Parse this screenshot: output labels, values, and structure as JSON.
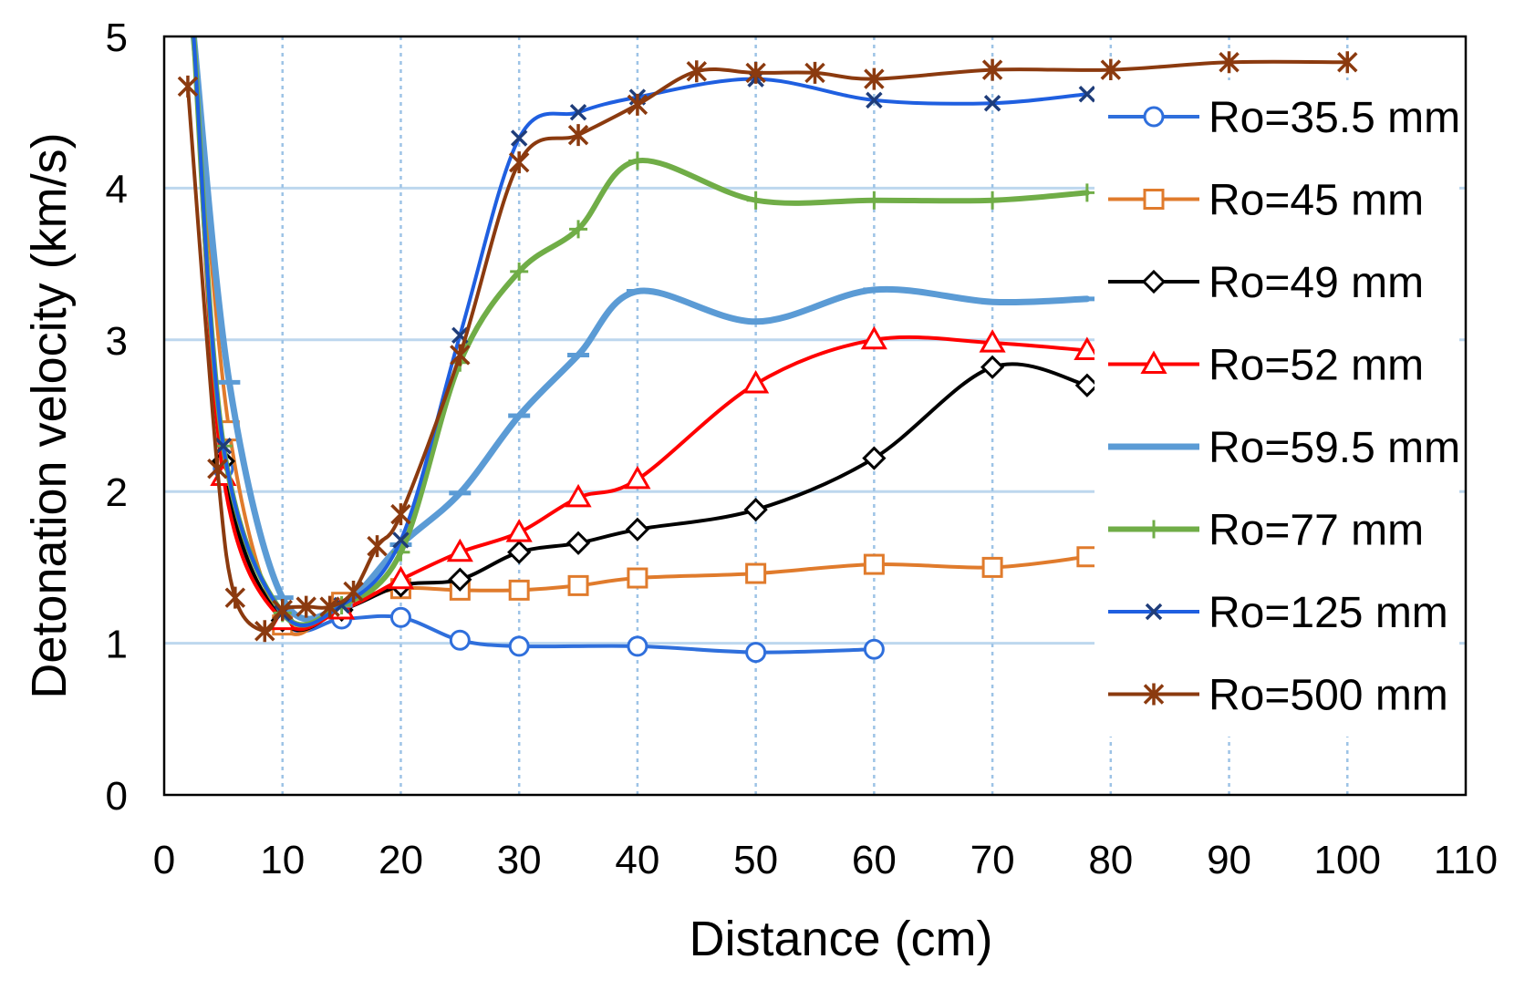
{
  "chart_data": {
    "type": "line",
    "title": "",
    "xlabel": "Distance (cm)",
    "ylabel": "Detonation velocity (km/s)",
    "xlim": [
      0,
      110
    ],
    "ylim": [
      0,
      5
    ],
    "xticks": [
      "0",
      "10",
      "20",
      "30",
      "40",
      "50",
      "60",
      "70",
      "80",
      "90",
      "100",
      "110"
    ],
    "yticks": [
      "0",
      "1",
      "2",
      "3",
      "4",
      "5"
    ],
    "grid": true,
    "legend_position": "right",
    "series": [
      {
        "name": "Ro=35.5 mm",
        "color": "#2f6fdc",
        "marker": "circle",
        "width": 4,
        "x": [
          2.5,
          5,
          10,
          15,
          20,
          25,
          30,
          40,
          50,
          60
        ],
        "y": [
          5.0,
          2.15,
          1.15,
          1.16,
          1.17,
          1.02,
          0.98,
          0.98,
          0.94,
          0.96
        ]
      },
      {
        "name": "Ro=45 mm",
        "color": "#e07b2c",
        "marker": "square",
        "width": 4,
        "x": [
          2.5,
          5.5,
          10,
          15,
          20,
          25,
          30,
          35,
          40,
          50,
          60,
          70,
          78
        ],
        "y": [
          5.0,
          2.4,
          1.12,
          1.27,
          1.36,
          1.35,
          1.35,
          1.38,
          1.43,
          1.46,
          1.52,
          1.5,
          1.57
        ]
      },
      {
        "name": "Ro=49 mm",
        "color": "#000000",
        "marker": "diamond",
        "width": 4,
        "x": [
          2.5,
          5,
          10,
          15,
          20,
          25,
          30,
          35,
          40,
          50,
          60,
          70,
          78
        ],
        "y": [
          5.0,
          2.2,
          1.15,
          1.22,
          1.38,
          1.42,
          1.6,
          1.66,
          1.75,
          1.88,
          2.22,
          2.82,
          2.7
        ]
      },
      {
        "name": "Ro=52 mm",
        "color": "#ff0000",
        "marker": "triangle",
        "width": 4,
        "x": [
          2.5,
          5,
          10,
          15,
          20,
          25,
          30,
          35,
          40,
          50,
          60,
          70,
          78
        ],
        "y": [
          5.0,
          2.1,
          1.15,
          1.22,
          1.42,
          1.6,
          1.73,
          1.96,
          2.08,
          2.71,
          3.0,
          2.98,
          2.93
        ]
      },
      {
        "name": "Ro=59.5 mm",
        "color": "#5b9bd5",
        "marker": "dash",
        "width": 7,
        "x": [
          2.5,
          5.5,
          10,
          15,
          20,
          25,
          30,
          35,
          40,
          50,
          60,
          70,
          78
        ],
        "y": [
          5.0,
          2.72,
          1.3,
          1.25,
          1.65,
          1.99,
          2.5,
          2.9,
          3.32,
          3.12,
          3.33,
          3.25,
          3.27
        ]
      },
      {
        "name": "Ro=77 mm",
        "color": "#70ad47",
        "marker": "plus",
        "width": 6,
        "x": [
          2.5,
          5,
          10,
          15,
          20,
          25,
          30,
          35,
          40,
          50,
          60,
          70,
          78
        ],
        "y": [
          5.0,
          2.3,
          1.2,
          1.25,
          1.6,
          2.85,
          3.45,
          3.73,
          4.18,
          3.92,
          3.92,
          3.92,
          3.97
        ]
      },
      {
        "name": "Ro=125 mm",
        "color": "#1f5fe0",
        "marker": "x",
        "width": 4,
        "x": [
          2.5,
          5,
          10,
          15,
          20,
          25,
          30,
          35,
          40,
          50,
          60,
          70,
          78
        ],
        "y": [
          5.0,
          2.3,
          1.2,
          1.25,
          1.68,
          3.03,
          4.33,
          4.5,
          4.6,
          4.72,
          4.58,
          4.56,
          4.62
        ]
      },
      {
        "name": "Ro=500 mm",
        "color": "#8b3a0f",
        "marker": "star",
        "width": 4,
        "x": [
          2,
          4.5,
          6,
          8.5,
          10,
          12,
          14,
          16,
          18,
          20,
          25,
          30,
          35,
          40,
          45,
          50,
          55,
          60,
          70,
          80,
          90,
          100
        ],
        "y": [
          4.67,
          2.15,
          1.3,
          1.08,
          1.22,
          1.24,
          1.24,
          1.34,
          1.64,
          1.85,
          2.9,
          4.17,
          4.35,
          4.55,
          4.77,
          4.76,
          4.76,
          4.72,
          4.78,
          4.78,
          4.83,
          4.83
        ]
      }
    ]
  }
}
